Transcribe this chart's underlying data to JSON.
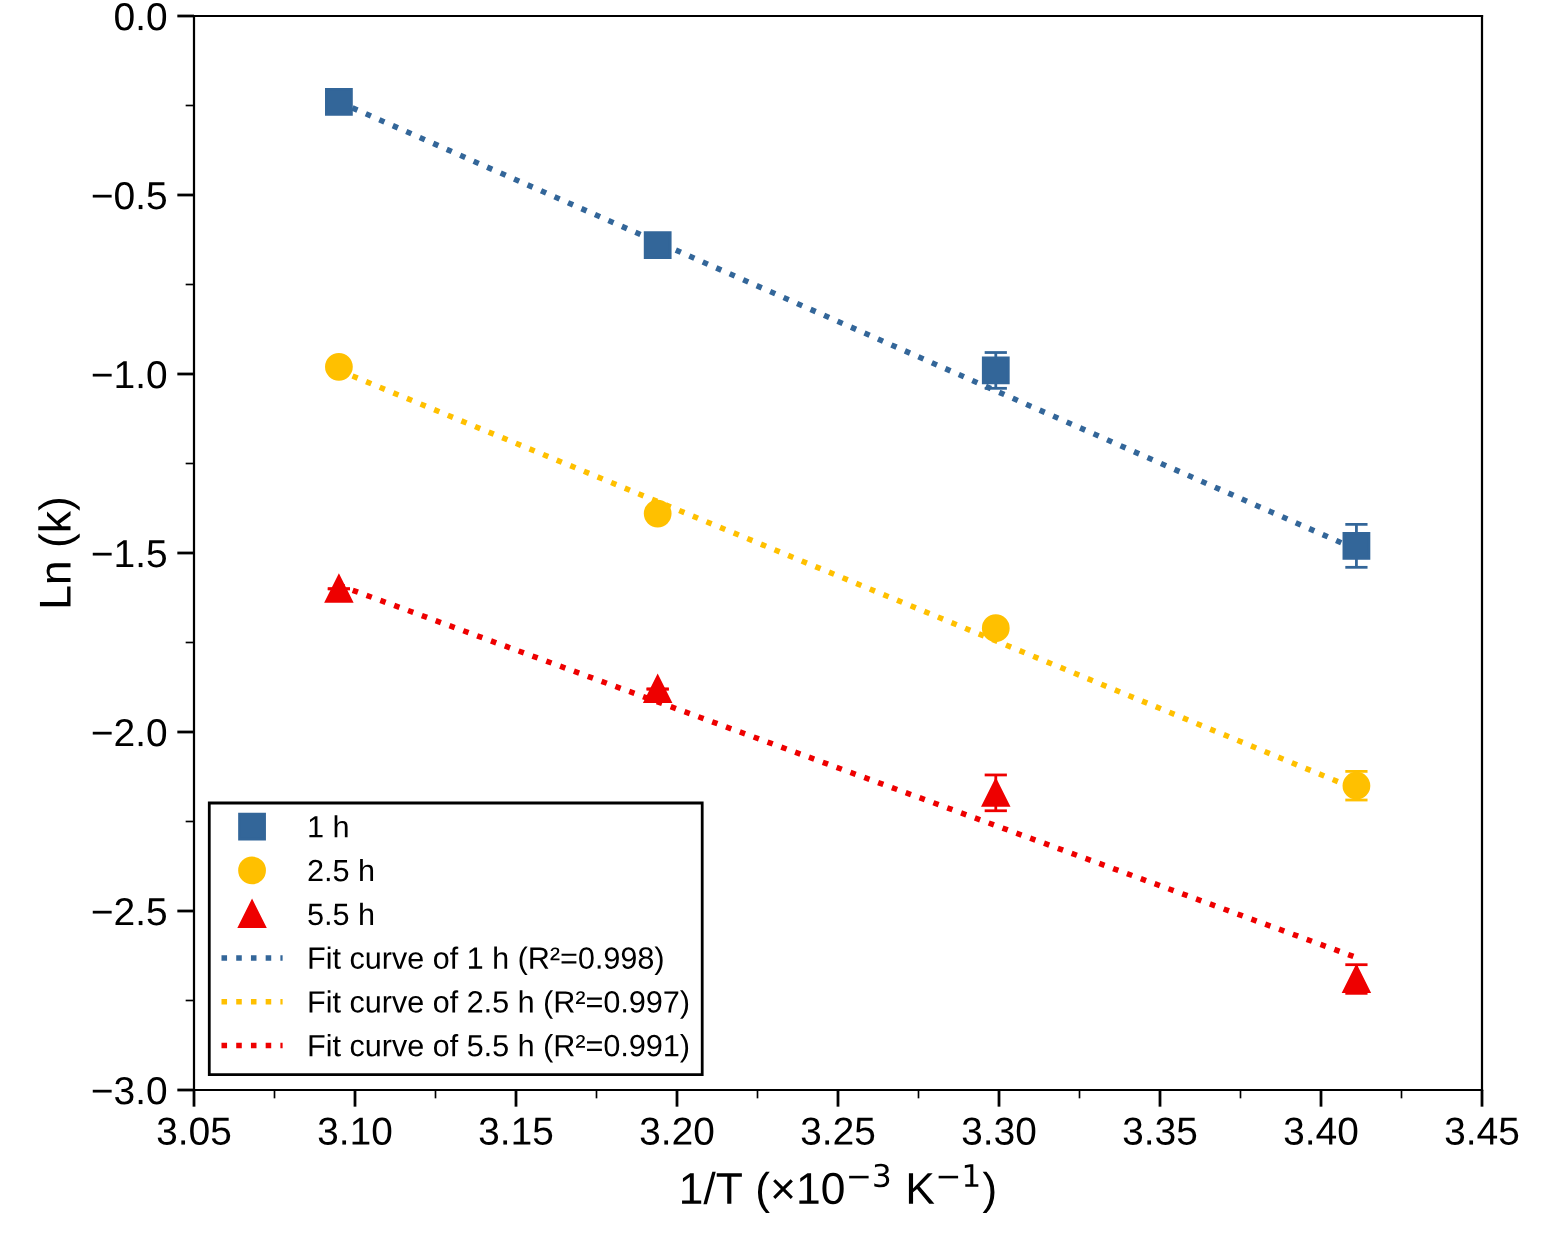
{
  "chart_data": {
    "type": "scatter",
    "xlabel": "1/T (×10$^{−3}$ K$^{−1}$)",
    "ylabel": "Ln (k)",
    "xlim": [
      3.05,
      3.45
    ],
    "xticks": [
      3.05,
      {
        "value": 3.1,
        "label": "3.10"
      },
      3.15,
      {
        "value": 3.2,
        "label": "3.20"
      },
      3.25,
      {
        "value": 3.3,
        "label": "3.30"
      },
      3.35,
      {
        "value": 3.4,
        "label": "3.40"
      },
      3.45
    ],
    "ylim": [
      -3.0,
      0.0
    ],
    "yticks": [
      {
        "value": -3,
        "label": "−3.0"
      },
      {
        "value": -2.5,
        "label": "−2.5"
      },
      {
        "value": -2,
        "label": "−2.0"
      },
      {
        "value": -1.5,
        "label": "−1.5"
      },
      {
        "value": -1,
        "label": "−1.0"
      },
      {
        "value": -0.5,
        "label": "−0.5"
      },
      {
        "value": 0,
        "label": "0.0"
      }
    ],
    "grid": false,
    "legend": "bottom left",
    "series": [
      {
        "name": "1 h",
        "type": "scatter",
        "marker": "square",
        "color": "#336699",
        "x": [
          3.095,
          3.194,
          3.299,
          3.411
        ],
        "values": [
          -0.24,
          -0.64,
          -0.99,
          -1.48
        ],
        "errors": [
          null,
          null,
          0.05,
          0.06
        ]
      },
      {
        "name": "2.5 h",
        "type": "scatter",
        "marker": "circle",
        "color": "#ffc000",
        "x": [
          3.095,
          3.194,
          3.299,
          3.411
        ],
        "values": [
          -0.98,
          -1.39,
          -1.71,
          -2.15
        ],
        "errors": [
          null,
          null,
          null,
          0.04
        ]
      },
      {
        "name": "5.5 h",
        "type": "scatter",
        "marker": "triangle",
        "color": "#ee0000",
        "x": [
          3.095,
          3.194,
          3.299,
          3.411
        ],
        "values": [
          -1.6,
          -1.88,
          -2.17,
          -2.69
        ],
        "errors": [
          null,
          null,
          0.05,
          0.04
        ]
      },
      {
        "name": "Fit curve of 1 h (R²=0.998)",
        "type": "line",
        "line_style": "dotted",
        "color": "#336699",
        "x": [
          3.095,
          3.411
        ],
        "values": [
          -0.24,
          -1.49
        ]
      },
      {
        "name": "Fit curve of 2.5 h (R²=0.997)",
        "type": "line",
        "line_style": "dotted",
        "color": "#ffc000",
        "x": [
          3.095,
          3.411
        ],
        "values": [
          -0.99,
          -2.16
        ]
      },
      {
        "name": "Fit curve of 5.5 h (R²=0.991)",
        "type": "line",
        "line_style": "dotted",
        "color": "#ee0000",
        "x": [
          3.095,
          3.411
        ],
        "values": [
          -1.59,
          -2.63
        ]
      }
    ]
  }
}
